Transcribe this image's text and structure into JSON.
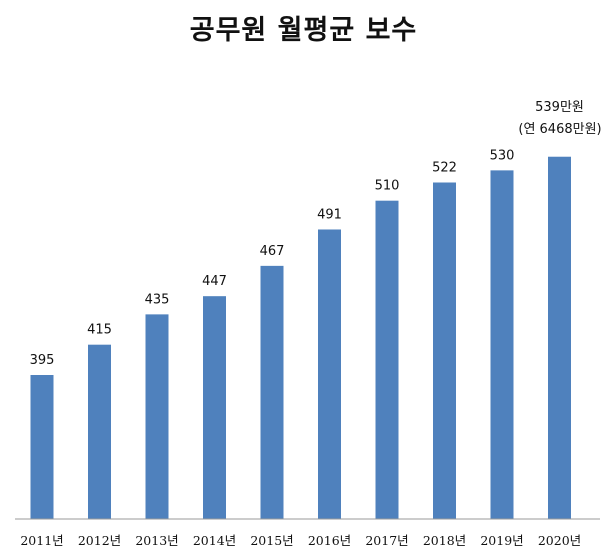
{
  "title": "공무원 월평균 보수",
  "chart_data": {
    "type": "bar",
    "title": "공무원 월평균 보수",
    "categories": [
      "2011년",
      "2012년",
      "2013년",
      "2014년",
      "2015년",
      "2016년",
      "2017년",
      "2018년",
      "2019년",
      "2020년"
    ],
    "values": [
      395,
      415,
      435,
      447,
      467,
      491,
      510,
      522,
      530,
      539
    ],
    "data_labels": [
      "395",
      "415",
      "435",
      "447",
      "467",
      "491",
      "510",
      "522",
      "530",
      "539만원"
    ],
    "annotation": "(연 6468만원)",
    "xlabel": "",
    "ylabel": "",
    "ylim": [
      300,
      560
    ],
    "grid": false,
    "legend": "none",
    "colors": {
      "bar": "#4f81bd"
    }
  }
}
